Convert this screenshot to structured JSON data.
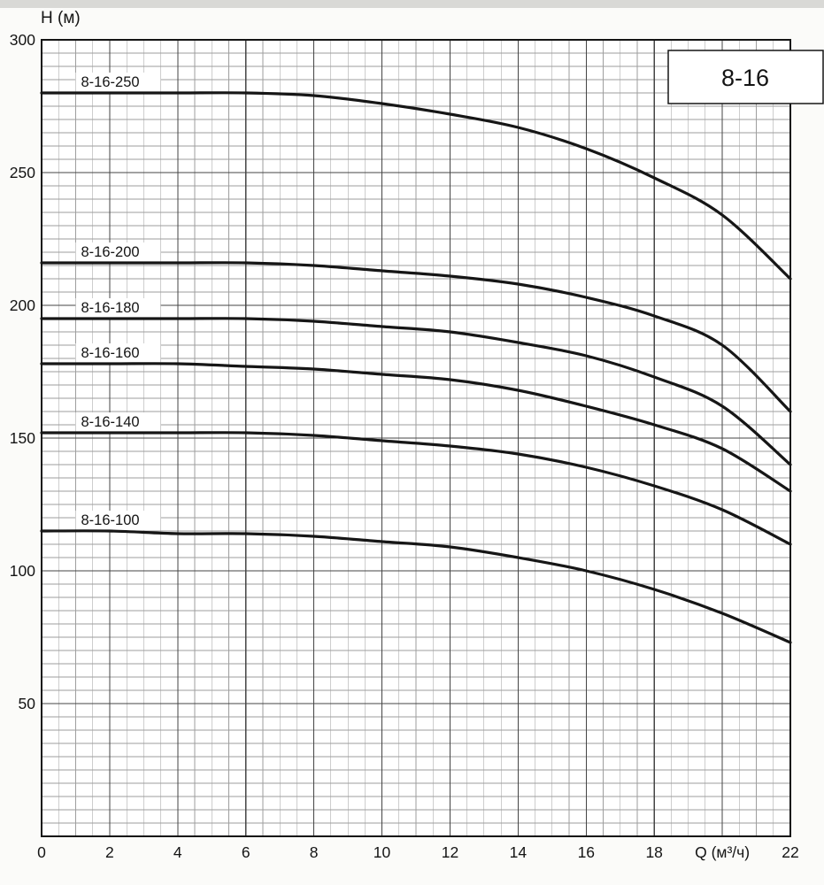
{
  "page": {
    "background": "#fbfbf9",
    "top_strip_color": "#d9d9d6"
  },
  "colors": {
    "plot_bg": "#ffffff",
    "grid_minor": "#9e9e9e",
    "grid_major": "#454545",
    "frame": "#151515",
    "curve": "#161616",
    "text": "#141414",
    "label_bg": "#ffffff"
  },
  "chart_data": {
    "type": "line",
    "title": "8-16",
    "xlabel": "Q (м³/ч)",
    "ylabel": "H (м)",
    "xlim": [
      0,
      22
    ],
    "ylim": [
      0,
      300
    ],
    "grid": {
      "minor_x": 0.5,
      "major_x": 2,
      "minor_y": 5,
      "major_y": 50,
      "grid_on": true
    },
    "x_ticks": [
      {
        "v": 0,
        "label": "0"
      },
      {
        "v": 2,
        "label": "2"
      },
      {
        "v": 4,
        "label": "4"
      },
      {
        "v": 6,
        "label": "6"
      },
      {
        "v": 8,
        "label": "8"
      },
      {
        "v": 10,
        "label": "10"
      },
      {
        "v": 12,
        "label": "12"
      },
      {
        "v": 14,
        "label": "14"
      },
      {
        "v": 16,
        "label": "16"
      },
      {
        "v": 18,
        "label": "18"
      },
      {
        "v": 20,
        "label": "Q (м³/ч)"
      },
      {
        "v": 22,
        "label": "22"
      }
    ],
    "y_ticks": [
      {
        "v": 50,
        "label": "50"
      },
      {
        "v": 100,
        "label": "100"
      },
      {
        "v": 150,
        "label": "150"
      },
      {
        "v": 200,
        "label": "200"
      },
      {
        "v": 250,
        "label": "250"
      },
      {
        "v": 300,
        "label": "300"
      }
    ],
    "x": [
      0,
      2,
      4,
      6,
      8,
      10,
      12,
      14,
      16,
      18,
      20,
      22
    ],
    "series": [
      {
        "name": "8-16-250",
        "label_q": 1.0,
        "values": [
          280,
          280,
          280,
          280,
          279,
          276,
          272,
          267,
          259,
          248,
          234,
          210
        ]
      },
      {
        "name": "8-16-200",
        "label_q": 1.0,
        "values": [
          216,
          216,
          216,
          216,
          215,
          213,
          211,
          208,
          203,
          196,
          185,
          160
        ]
      },
      {
        "name": "8-16-180",
        "label_q": 1.0,
        "values": [
          195,
          195,
          195,
          195,
          194,
          192,
          190,
          186,
          181,
          173,
          162,
          140
        ]
      },
      {
        "name": "8-16-160",
        "label_q": 1.0,
        "values": [
          178,
          178,
          178,
          177,
          176,
          174,
          172,
          168,
          162,
          155,
          146,
          130
        ]
      },
      {
        "name": "8-16-140",
        "label_q": 1.0,
        "values": [
          152,
          152,
          152,
          152,
          151,
          149,
          147,
          144,
          139,
          132,
          123,
          110
        ]
      },
      {
        "name": "8-16-100",
        "label_q": 1.0,
        "values": [
          115,
          115,
          114,
          114,
          113,
          111,
          109,
          105,
          100,
          93,
          84,
          73
        ]
      }
    ],
    "corner_box": {
      "label": "8-16"
    },
    "legend_position": "none"
  }
}
